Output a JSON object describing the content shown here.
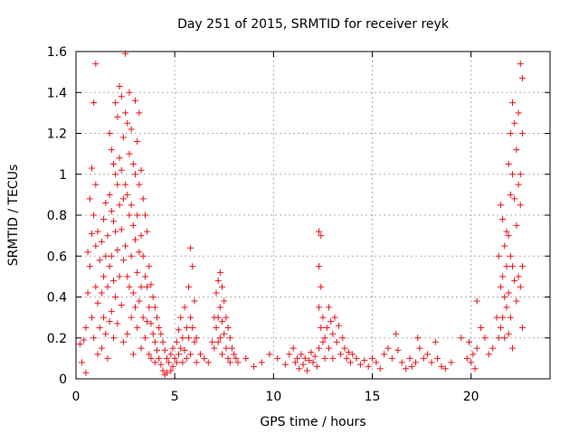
{
  "chart_data": {
    "type": "scatter",
    "title": "Day 251 of 2015, SRMTID for receiver reyk",
    "xlabel": "GPS time / hours",
    "ylabel": "SRMTID / TECUs",
    "xlim": [
      0,
      24
    ],
    "ylim": [
      0,
      1.6
    ],
    "x_ticks": [
      0,
      5,
      10,
      15,
      20
    ],
    "y_ticks": [
      0,
      0.2,
      0.4,
      0.6,
      0.8,
      1,
      1.2,
      1.4,
      1.6
    ],
    "x_tick_labels": [
      "0",
      "5",
      "10",
      "15",
      "20"
    ],
    "y_tick_labels": [
      "0",
      "0.2",
      "0.4",
      "0.6",
      "0.8",
      "1",
      "1.2",
      "1.4",
      "1.6"
    ],
    "grid": true,
    "marker": "+",
    "marker_color": "#e8121a",
    "series": [
      {
        "name": "SRMTID",
        "points": [
          [
            0.2,
            0.17
          ],
          [
            0.3,
            0.08
          ],
          [
            0.4,
            0.19
          ],
          [
            0.5,
            0.25
          ],
          [
            0.5,
            0.03
          ],
          [
            0.6,
            0.42
          ],
          [
            0.6,
            0.62
          ],
          [
            0.7,
            0.88
          ],
          [
            0.7,
            0.55
          ],
          [
            0.8,
            1.03
          ],
          [
            0.8,
            0.71
          ],
          [
            0.8,
            0.3
          ],
          [
            0.9,
            1.35
          ],
          [
            0.9,
            0.8
          ],
          [
            0.9,
            0.2
          ],
          [
            1.0,
            1.54
          ],
          [
            1.0,
            0.95
          ],
          [
            1.0,
            0.65
          ],
          [
            1.0,
            0.45
          ],
          [
            1.1,
            0.72
          ],
          [
            1.1,
            0.37
          ],
          [
            1.1,
            0.12
          ],
          [
            1.2,
            0.58
          ],
          [
            1.2,
            0.25
          ],
          [
            1.3,
            0.67
          ],
          [
            1.3,
            0.42
          ],
          [
            1.3,
            0.15
          ],
          [
            1.4,
            0.78
          ],
          [
            1.4,
            0.5
          ],
          [
            1.4,
            0.3
          ],
          [
            1.5,
            0.86
          ],
          [
            1.5,
            0.6
          ],
          [
            1.5,
            0.22
          ],
          [
            1.6,
            0.7
          ],
          [
            1.6,
            0.45
          ],
          [
            1.6,
            0.1
          ],
          [
            1.7,
            1.2
          ],
          [
            1.7,
            0.9
          ],
          [
            1.7,
            0.55
          ],
          [
            1.7,
            0.28
          ],
          [
            1.8,
            1.12
          ],
          [
            1.8,
            0.82
          ],
          [
            1.8,
            0.6
          ],
          [
            1.8,
            0.33
          ],
          [
            1.9,
            1.05
          ],
          [
            1.9,
            0.77
          ],
          [
            1.9,
            0.48
          ],
          [
            1.9,
            0.2
          ],
          [
            2.0,
            1.35
          ],
          [
            2.0,
            1.0
          ],
          [
            2.0,
            0.72
          ],
          [
            2.0,
            0.4
          ],
          [
            2.1,
            1.28
          ],
          [
            2.1,
            0.95
          ],
          [
            2.1,
            0.63
          ],
          [
            2.1,
            0.27
          ],
          [
            2.2,
            1.43
          ],
          [
            2.2,
            1.08
          ],
          [
            2.2,
            0.85
          ],
          [
            2.2,
            0.5
          ],
          [
            2.3,
            1.38
          ],
          [
            2.3,
            1.02
          ],
          [
            2.3,
            0.73
          ],
          [
            2.3,
            0.36
          ],
          [
            2.4,
            1.18
          ],
          [
            2.4,
            0.88
          ],
          [
            2.4,
            0.58
          ],
          [
            2.4,
            0.18
          ],
          [
            2.5,
            1.59
          ],
          [
            2.5,
            1.3
          ],
          [
            2.5,
            0.95
          ],
          [
            2.5,
            0.65
          ],
          [
            2.6,
            1.25
          ],
          [
            2.6,
            0.9
          ],
          [
            2.6,
            0.5
          ],
          [
            2.6,
            0.22
          ],
          [
            2.7,
            1.4
          ],
          [
            2.7,
            1.1
          ],
          [
            2.7,
            0.8
          ],
          [
            2.7,
            0.45
          ],
          [
            2.8,
            1.22
          ],
          [
            2.8,
            0.85
          ],
          [
            2.8,
            0.6
          ],
          [
            2.8,
            0.3
          ],
          [
            2.9,
            1.05
          ],
          [
            2.9,
            0.75
          ],
          [
            2.9,
            0.42
          ],
          [
            2.9,
            0.12
          ],
          [
            3.0,
            1.36
          ],
          [
            3.0,
            1.0
          ],
          [
            3.0,
            0.68
          ],
          [
            3.0,
            0.35
          ],
          [
            3.1,
            1.16
          ],
          [
            3.1,
            0.8
          ],
          [
            3.1,
            0.52
          ],
          [
            3.1,
            0.25
          ],
          [
            3.2,
            1.3
          ],
          [
            3.2,
            0.95
          ],
          [
            3.2,
            0.62
          ],
          [
            3.2,
            0.38
          ],
          [
            3.3,
            1.02
          ],
          [
            3.3,
            0.7
          ],
          [
            3.3,
            0.45
          ],
          [
            3.3,
            0.15
          ],
          [
            3.4,
            0.88
          ],
          [
            3.4,
            0.6
          ],
          [
            3.4,
            0.3
          ],
          [
            3.5,
            0.8
          ],
          [
            3.5,
            0.5
          ],
          [
            3.5,
            0.2
          ],
          [
            3.6,
            0.72
          ],
          [
            3.6,
            0.45
          ],
          [
            3.6,
            0.28
          ],
          [
            3.7,
            0.55
          ],
          [
            3.7,
            0.35
          ],
          [
            3.7,
            0.12
          ],
          [
            3.8,
            0.46
          ],
          [
            3.8,
            0.27
          ],
          [
            3.8,
            0.1
          ],
          [
            3.9,
            0.4
          ],
          [
            3.9,
            0.22
          ],
          [
            4.0,
            0.35
          ],
          [
            4.0,
            0.18
          ],
          [
            4.0,
            0.08
          ],
          [
            4.1,
            0.3
          ],
          [
            4.1,
            0.14
          ],
          [
            4.2,
            0.25
          ],
          [
            4.2,
            0.1
          ],
          [
            4.3,
            0.22
          ],
          [
            4.3,
            0.07
          ],
          [
            4.4,
            0.18
          ],
          [
            4.4,
            0.04
          ],
          [
            4.5,
            0.14
          ],
          [
            4.5,
            0.02
          ],
          [
            4.6,
            0.1
          ],
          [
            4.6,
            0.03
          ],
          [
            4.7,
            0.08
          ],
          [
            4.8,
            0.12
          ],
          [
            4.8,
            0.04
          ],
          [
            4.9,
            0.15
          ],
          [
            4.9,
            0.06
          ],
          [
            5.0,
            0.1
          ],
          [
            5.1,
            0.18
          ],
          [
            5.1,
            0.08
          ],
          [
            5.2,
            0.24
          ],
          [
            5.2,
            0.12
          ],
          [
            5.3,
            0.3
          ],
          [
            5.3,
            0.15
          ],
          [
            5.4,
            0.2
          ],
          [
            5.4,
            0.08
          ],
          [
            5.5,
            0.35
          ],
          [
            5.5,
            0.14
          ],
          [
            5.6,
            0.25
          ],
          [
            5.6,
            0.1
          ],
          [
            5.7,
            0.45
          ],
          [
            5.7,
            0.2
          ],
          [
            5.8,
            0.64
          ],
          [
            5.8,
            0.3
          ],
          [
            5.8,
            0.12
          ],
          [
            5.9,
            0.55
          ],
          [
            5.9,
            0.25
          ],
          [
            6.0,
            0.38
          ],
          [
            6.0,
            0.18
          ],
          [
            6.1,
            0.2
          ],
          [
            6.1,
            0.08
          ],
          [
            6.3,
            0.12
          ],
          [
            6.5,
            0.1
          ],
          [
            6.7,
            0.08
          ],
          [
            6.9,
            0.18
          ],
          [
            7.0,
            0.3
          ],
          [
            7.0,
            0.15
          ],
          [
            7.1,
            0.42
          ],
          [
            7.1,
            0.25
          ],
          [
            7.2,
            0.48
          ],
          [
            7.2,
            0.3
          ],
          [
            7.2,
            0.18
          ],
          [
            7.3,
            0.52
          ],
          [
            7.3,
            0.35
          ],
          [
            7.3,
            0.2
          ],
          [
            7.4,
            0.45
          ],
          [
            7.4,
            0.28
          ],
          [
            7.4,
            0.12
          ],
          [
            7.5,
            0.38
          ],
          [
            7.5,
            0.22
          ],
          [
            7.6,
            0.3
          ],
          [
            7.6,
            0.15
          ],
          [
            7.7,
            0.25
          ],
          [
            7.7,
            0.1
          ],
          [
            7.8,
            0.2
          ],
          [
            7.8,
            0.08
          ],
          [
            7.9,
            0.15
          ],
          [
            8.0,
            0.12
          ],
          [
            8.1,
            0.1
          ],
          [
            8.2,
            0.08
          ],
          [
            8.6,
            0.1
          ],
          [
            9.0,
            0.06
          ],
          [
            9.4,
            0.08
          ],
          [
            9.8,
            0.12
          ],
          [
            10.2,
            0.1
          ],
          [
            10.6,
            0.07
          ],
          [
            10.8,
            0.12
          ],
          [
            11.0,
            0.15
          ],
          [
            11.1,
            0.08
          ],
          [
            11.2,
            0.1
          ],
          [
            11.3,
            0.05
          ],
          [
            11.4,
            0.12
          ],
          [
            11.5,
            0.07
          ],
          [
            11.6,
            0.1
          ],
          [
            11.7,
            0.04
          ],
          [
            11.8,
            0.09
          ],
          [
            11.9,
            0.13
          ],
          [
            12.0,
            0.08
          ],
          [
            12.1,
            0.11
          ],
          [
            12.2,
            0.06
          ],
          [
            12.3,
            0.72
          ],
          [
            12.3,
            0.55
          ],
          [
            12.3,
            0.35
          ],
          [
            12.3,
            0.15
          ],
          [
            12.4,
            0.7
          ],
          [
            12.4,
            0.45
          ],
          [
            12.4,
            0.25
          ],
          [
            12.5,
            0.3
          ],
          [
            12.5,
            0.18
          ],
          [
            12.6,
            0.2
          ],
          [
            12.6,
            0.1
          ],
          [
            12.7,
            0.25
          ],
          [
            12.8,
            0.35
          ],
          [
            12.8,
            0.15
          ],
          [
            12.9,
            0.28
          ],
          [
            13.0,
            0.22
          ],
          [
            13.0,
            0.1
          ],
          [
            13.1,
            0.3
          ],
          [
            13.2,
            0.18
          ],
          [
            13.3,
            0.26
          ],
          [
            13.4,
            0.12
          ],
          [
            13.5,
            0.2
          ],
          [
            13.6,
            0.15
          ],
          [
            13.7,
            0.1
          ],
          [
            13.8,
            0.13
          ],
          [
            13.9,
            0.08
          ],
          [
            14.0,
            0.12
          ],
          [
            14.2,
            0.1
          ],
          [
            14.4,
            0.07
          ],
          [
            14.6,
            0.09
          ],
          [
            14.8,
            0.06
          ],
          [
            15.0,
            0.1
          ],
          [
            15.2,
            0.08
          ],
          [
            15.4,
            0.05
          ],
          [
            15.6,
            0.12
          ],
          [
            15.8,
            0.15
          ],
          [
            16.0,
            0.1
          ],
          [
            16.2,
            0.22
          ],
          [
            16.3,
            0.14
          ],
          [
            16.5,
            0.08
          ],
          [
            16.7,
            0.05
          ],
          [
            16.9,
            0.1
          ],
          [
            17.0,
            0.06
          ],
          [
            17.2,
            0.08
          ],
          [
            17.3,
            0.2
          ],
          [
            17.4,
            0.15
          ],
          [
            17.6,
            0.1
          ],
          [
            17.8,
            0.12
          ],
          [
            18.0,
            0.08
          ],
          [
            18.2,
            0.18
          ],
          [
            18.3,
            0.1
          ],
          [
            18.5,
            0.06
          ],
          [
            18.7,
            0.05
          ],
          [
            19.0,
            0.08
          ],
          [
            19.5,
            0.2
          ],
          [
            19.8,
            0.1
          ],
          [
            19.9,
            0.18
          ],
          [
            20.0,
            0.08
          ],
          [
            20.1,
            0.12
          ],
          [
            20.2,
            0.05
          ],
          [
            20.3,
            0.15
          ],
          [
            20.3,
            0.38
          ],
          [
            20.5,
            0.25
          ],
          [
            20.7,
            0.2
          ],
          [
            20.9,
            0.12
          ],
          [
            21.1,
            0.15
          ],
          [
            21.3,
            0.3
          ],
          [
            21.4,
            0.6
          ],
          [
            21.4,
            0.2
          ],
          [
            21.5,
            0.85
          ],
          [
            21.5,
            0.45
          ],
          [
            21.5,
            0.25
          ],
          [
            21.6,
            0.78
          ],
          [
            21.6,
            0.5
          ],
          [
            21.6,
            0.3
          ],
          [
            21.7,
            0.65
          ],
          [
            21.7,
            0.4
          ],
          [
            21.7,
            0.2
          ],
          [
            21.8,
            0.72
          ],
          [
            21.8,
            0.55
          ],
          [
            21.8,
            0.35
          ],
          [
            21.9,
            1.05
          ],
          [
            21.9,
            0.7
          ],
          [
            21.9,
            0.42
          ],
          [
            21.9,
            0.22
          ],
          [
            22.0,
            1.2
          ],
          [
            22.0,
            0.9
          ],
          [
            22.0,
            0.6
          ],
          [
            22.0,
            0.3
          ],
          [
            22.1,
            1.35
          ],
          [
            22.1,
            1.0
          ],
          [
            22.1,
            0.55
          ],
          [
            22.1,
            0.15
          ],
          [
            22.2,
            1.25
          ],
          [
            22.2,
            0.88
          ],
          [
            22.2,
            0.48
          ],
          [
            22.3,
            1.12
          ],
          [
            22.3,
            0.75
          ],
          [
            22.3,
            0.38
          ],
          [
            22.4,
            1.3
          ],
          [
            22.4,
            0.95
          ],
          [
            22.4,
            0.5
          ],
          [
            22.5,
            1.54
          ],
          [
            22.5,
            1.0
          ],
          [
            22.5,
            0.85
          ],
          [
            22.5,
            0.45
          ],
          [
            22.6,
            1.47
          ],
          [
            22.6,
            1.2
          ],
          [
            22.6,
            0.55
          ],
          [
            22.6,
            0.25
          ]
        ]
      }
    ]
  }
}
